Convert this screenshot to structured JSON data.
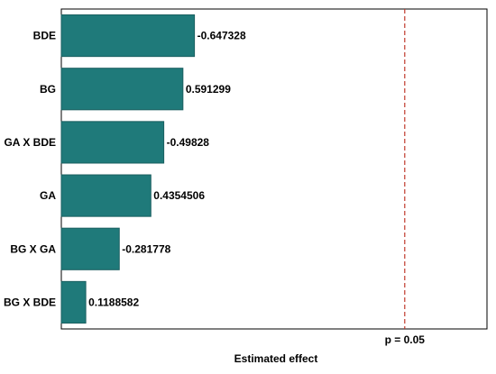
{
  "chart_data": {
    "type": "bar",
    "orientation": "horizontal",
    "chart_style": "pareto",
    "categories": [
      "BDE",
      "BG",
      "GA X BDE",
      "GA",
      "BG X GA",
      "BG X BDE"
    ],
    "values": [
      0.647328,
      0.591299,
      0.49828,
      0.4354506,
      0.281778,
      0.1188582
    ],
    "data_labels": [
      "-0.647328",
      "0.591299",
      "-0.49828",
      "0.4354506",
      "-0.281778",
      "0.1188582"
    ],
    "xlabel": "Estimated effect",
    "ylabel": "",
    "title": "",
    "xlim": [
      0,
      2.07
    ],
    "reference_line": {
      "value": 1.67,
      "label": "p = 0.05",
      "color": "#c0392b"
    },
    "grid": false,
    "colors": {
      "bar": "#1f7a7a",
      "bar_edge": "#1a5f60",
      "highlight": "#22a87d"
    }
  }
}
